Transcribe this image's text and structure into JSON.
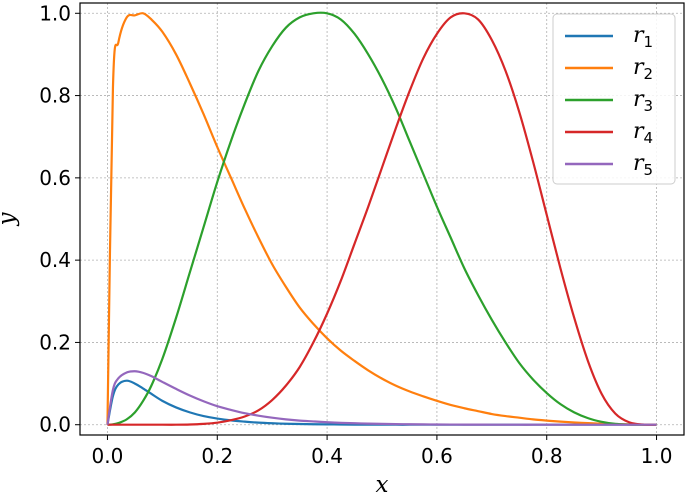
{
  "chart_data": {
    "type": "line",
    "title": "",
    "xlabel": "x",
    "ylabel": "y",
    "xlim": [
      -0.05,
      1.05
    ],
    "ylim": [
      -0.025,
      1.025
    ],
    "xticks": [
      "0.0",
      "0.2",
      "0.4",
      "0.6",
      "0.8",
      "1.0"
    ],
    "yticks": [
      "0.0",
      "0.2",
      "0.4",
      "0.6",
      "0.8",
      "1.0"
    ],
    "grid": true,
    "legend_position": "top-right",
    "x": [
      0,
      0.01,
      0.02,
      0.035,
      0.05,
      0.065,
      0.08,
      0.1,
      0.125,
      0.15,
      0.175,
      0.2,
      0.225,
      0.25,
      0.275,
      0.3,
      0.325,
      0.35,
      0.375,
      0.4,
      0.425,
      0.45,
      0.475,
      0.5,
      0.525,
      0.55,
      0.575,
      0.6,
      0.625,
      0.65,
      0.675,
      0.7,
      0.725,
      0.75,
      0.775,
      0.8,
      0.825,
      0.85,
      0.875,
      0.9,
      0.925,
      0.95,
      0.975,
      1.0
    ],
    "series": [
      {
        "name": "r1",
        "color": "#1f77b4",
        "values": [
          0,
          0.07,
          0.098,
          0.107,
          0.1,
          0.088,
          0.075,
          0.058,
          0.042,
          0.03,
          0.021,
          0.015,
          0.0105,
          0.0075,
          0.005,
          0.0035,
          0.0024,
          0.0017,
          0.0012,
          0.0008,
          0.0005,
          0.0003,
          0.0002,
          0.0001,
          0,
          0,
          0,
          0,
          0,
          0,
          0,
          0,
          0,
          0,
          0,
          0,
          0,
          0,
          0,
          0,
          0,
          0,
          0,
          0
        ]
      },
      {
        "name": "r2",
        "color": "#ff7f0e",
        "values": [
          0,
          0.82,
          0.93,
          0.99,
          0.995,
          1.0,
          0.985,
          0.955,
          0.9,
          0.83,
          0.755,
          0.675,
          0.6,
          0.525,
          0.455,
          0.39,
          0.335,
          0.285,
          0.245,
          0.21,
          0.18,
          0.155,
          0.132,
          0.112,
          0.095,
          0.081,
          0.069,
          0.058,
          0.048,
          0.04,
          0.033,
          0.026,
          0.021,
          0.017,
          0.013,
          0.01,
          0.0075,
          0.0055,
          0.004,
          0.0025,
          0.0015,
          0.0008,
          0.0003,
          0
        ]
      },
      {
        "name": "r3",
        "color": "#2ca02c",
        "values": [
          0,
          0.001,
          0.004,
          0.013,
          0.03,
          0.058,
          0.095,
          0.16,
          0.26,
          0.37,
          0.48,
          0.59,
          0.69,
          0.78,
          0.86,
          0.92,
          0.965,
          0.99,
          1.0,
          1.0,
          0.985,
          0.95,
          0.9,
          0.84,
          0.77,
          0.69,
          0.61,
          0.53,
          0.455,
          0.38,
          0.315,
          0.255,
          0.2,
          0.15,
          0.11,
          0.077,
          0.05,
          0.03,
          0.016,
          0.007,
          0.002,
          0.0005,
          0.0001,
          0
        ]
      },
      {
        "name": "r4",
        "color": "#d62728",
        "values": [
          0,
          0,
          0,
          0,
          0,
          0,
          0,
          0,
          0,
          0.0005,
          0.002,
          0.005,
          0.011,
          0.02,
          0.035,
          0.06,
          0.095,
          0.14,
          0.2,
          0.27,
          0.35,
          0.44,
          0.53,
          0.625,
          0.72,
          0.81,
          0.89,
          0.95,
          0.99,
          1.0,
          0.985,
          0.935,
          0.86,
          0.76,
          0.64,
          0.51,
          0.38,
          0.26,
          0.155,
          0.075,
          0.027,
          0.006,
          0.0005,
          0
        ]
      },
      {
        "name": "r5",
        "color": "#9467bd",
        "values": [
          0,
          0.085,
          0.113,
          0.127,
          0.13,
          0.126,
          0.118,
          0.104,
          0.087,
          0.071,
          0.057,
          0.045,
          0.036,
          0.028,
          0.022,
          0.017,
          0.013,
          0.01,
          0.008,
          0.006,
          0.0045,
          0.0035,
          0.0027,
          0.002,
          0.0015,
          0.0011,
          0.0008,
          0.0006,
          0.0004,
          0.0003,
          0.0002,
          0.0001,
          0.0001,
          0,
          0,
          0,
          0,
          0,
          0,
          0,
          0,
          0,
          0,
          0
        ]
      }
    ]
  }
}
